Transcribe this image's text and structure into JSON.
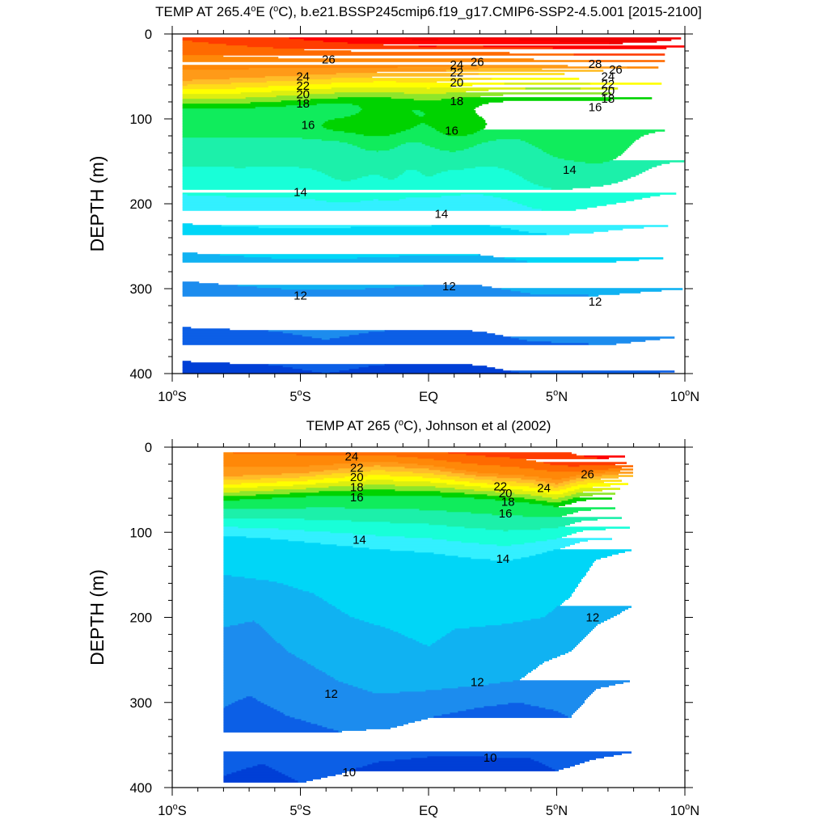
{
  "chart_data": [
    {
      "type": "heatmap",
      "title_parts": [
        "TEMP AT 265.4",
        "o",
        "E (",
        "o",
        "C), b.e21.BSSP245cmip6.f19_g17.CMIP6-SSP2-4.5.001 [2015-2100]"
      ],
      "ylabel": "DEPTH (m)",
      "xlabel": "",
      "x_range": [
        -10,
        10
      ],
      "y_range": [
        0,
        400
      ],
      "y_reversed": true,
      "data_x_range": [
        -9.6,
        10
      ],
      "data_y_range": [
        4,
        400
      ],
      "x_ticks": [
        {
          "v": -10,
          "l": "10",
          "s": "S"
        },
        {
          "v": -5,
          "l": "5",
          "s": "S"
        },
        {
          "v": 0,
          "l": "EQ",
          "s": ""
        },
        {
          "v": 5,
          "l": "5",
          "s": "N"
        },
        {
          "v": 10,
          "l": "10",
          "s": "N"
        }
      ],
      "y_ticks": [
        "0",
        "100",
        "200",
        "300",
        "400"
      ],
      "contour_labels": [
        {
          "x": -3.9,
          "y": 30,
          "t": "26"
        },
        {
          "x": -4.9,
          "y": 50,
          "t": "24"
        },
        {
          "x": -4.9,
          "y": 61,
          "t": "22"
        },
        {
          "x": -4.9,
          "y": 71,
          "t": "20"
        },
        {
          "x": -4.9,
          "y": 82,
          "t": "18"
        },
        {
          "x": 1.1,
          "y": 36,
          "t": "24"
        },
        {
          "x": 1.9,
          "y": 33,
          "t": "26"
        },
        {
          "x": 1.1,
          "y": 45,
          "t": "22"
        },
        {
          "x": 1.1,
          "y": 57,
          "t": "20"
        },
        {
          "x": 1.1,
          "y": 79,
          "t": "18"
        },
        {
          "x": 6.5,
          "y": 35,
          "t": "28"
        },
        {
          "x": 7.3,
          "y": 42,
          "t": "26"
        },
        {
          "x": 7.0,
          "y": 50,
          "t": "24"
        },
        {
          "x": 7.0,
          "y": 59,
          "t": "22"
        },
        {
          "x": 7.0,
          "y": 67,
          "t": "20"
        },
        {
          "x": 7.0,
          "y": 76,
          "t": "18"
        },
        {
          "x": 6.5,
          "y": 86,
          "t": "16"
        },
        {
          "x": -4.7,
          "y": 107,
          "t": "16"
        },
        {
          "x": 0.9,
          "y": 114,
          "t": "16"
        },
        {
          "x": 5.5,
          "y": 160,
          "t": "14"
        },
        {
          "x": -5.0,
          "y": 186,
          "t": "14"
        },
        {
          "x": 0.5,
          "y": 212,
          "t": "14"
        },
        {
          "x": -5.0,
          "y": 308,
          "t": "12"
        },
        {
          "x": 0.8,
          "y": 297,
          "t": "12"
        },
        {
          "x": 6.5,
          "y": 315,
          "t": "12"
        }
      ],
      "features": {
        "thermocline_depth_deg": [
          [
            -9.6,
            88
          ],
          [
            -7.5,
            88
          ],
          [
            -5,
            84
          ],
          [
            -2.8,
            80
          ],
          [
            -1.4,
            82
          ],
          [
            0,
            86
          ],
          [
            1.5,
            82
          ],
          [
            3,
            78
          ],
          [
            4.5,
            76
          ],
          [
            6,
            76
          ],
          [
            8,
            75
          ],
          [
            10,
            74
          ]
        ],
        "mixed_layer_depth_deg": [
          [
            -9.6,
            52
          ],
          [
            -5,
            45
          ],
          [
            -2,
            40
          ],
          [
            0,
            38
          ],
          [
            2,
            34
          ],
          [
            4,
            34
          ],
          [
            6,
            36
          ],
          [
            8,
            38
          ],
          [
            10,
            38
          ]
        ],
        "upper_doming": [
          [
            -3.5,
            110,
            1.3,
            12,
            0.9
          ],
          [
            -1.4,
            108,
            1.2,
            14,
            0.9
          ],
          [
            1.6,
            110,
            1.3,
            14,
            0.8
          ],
          [
            -2.1,
            122,
            1.0,
            30,
            0.7
          ],
          [
            1.0,
            122,
            1.0,
            32,
            0.7
          ],
          [
            -1.4,
            170,
            0.5,
            28,
            0.4
          ],
          [
            0,
            164,
            0.5,
            24,
            0.3
          ],
          [
            4.9,
            165,
            1.6,
            55,
            0.8
          ],
          [
            7.0,
            150,
            1.4,
            40,
            0.8
          ],
          [
            -3.2,
            175,
            1.2,
            25,
            0.5
          ]
        ],
        "deep_z12": [
          [
            -10,
            290
          ],
          [
            -6,
            300
          ],
          [
            -3.5,
            302
          ],
          [
            0,
            296
          ],
          [
            2,
            296
          ],
          [
            4,
            306
          ],
          [
            6.5,
            308
          ],
          [
            10,
            300
          ]
        ],
        "deep_z11": [
          [
            -10,
            345
          ],
          [
            -6,
            350
          ],
          [
            -4,
            360
          ],
          [
            -2,
            350
          ],
          [
            0,
            348
          ],
          [
            2,
            350
          ],
          [
            4,
            362
          ],
          [
            7,
            366
          ],
          [
            10,
            356
          ]
        ],
        "surface_warm": [
          [
            1.8,
            0,
            11,
            30,
            3.0
          ],
          [
            8.5,
            0,
            4,
            34,
            1.4
          ],
          [
            -0.2,
            0,
            0.6,
            10,
            0.8
          ]
        ]
      }
    },
    {
      "type": "heatmap",
      "title_parts": [
        "TEMP AT 265 (",
        "o",
        "C), Johnson et al (2002)"
      ],
      "ylabel": "DEPTH (m)",
      "xlabel": "",
      "x_range": [
        -10,
        10
      ],
      "y_range": [
        0,
        400
      ],
      "y_reversed": true,
      "data_x_range": [
        -8,
        8
      ],
      "data_y_range": [
        6,
        400
      ],
      "x_ticks": [
        {
          "v": -10,
          "l": "10",
          "s": "S"
        },
        {
          "v": -5,
          "l": "5",
          "s": "S"
        },
        {
          "v": 0,
          "l": "EQ",
          "s": ""
        },
        {
          "v": 5,
          "l": "5",
          "s": "N"
        },
        {
          "v": 10,
          "l": "10",
          "s": "N"
        }
      ],
      "y_ticks": [
        "0",
        "100",
        "200",
        "300",
        "400"
      ],
      "contour_labels": [
        {
          "x": -3.0,
          "y": 11,
          "t": "24"
        },
        {
          "x": -2.8,
          "y": 24,
          "t": "22"
        },
        {
          "x": -2.8,
          "y": 35,
          "t": "20"
        },
        {
          "x": -2.8,
          "y": 47,
          "t": "18"
        },
        {
          "x": -2.8,
          "y": 59,
          "t": "16"
        },
        {
          "x": 2.8,
          "y": 46,
          "t": "22"
        },
        {
          "x": 3.0,
          "y": 54,
          "t": "20"
        },
        {
          "x": 3.1,
          "y": 64,
          "t": "18"
        },
        {
          "x": 3.0,
          "y": 78,
          "t": "16"
        },
        {
          "x": 4.5,
          "y": 48,
          "t": "24"
        },
        {
          "x": 6.2,
          "y": 32,
          "t": "26"
        },
        {
          "x": -2.7,
          "y": 109,
          "t": "14"
        },
        {
          "x": 2.9,
          "y": 131,
          "t": "14"
        },
        {
          "x": 6.4,
          "y": 200,
          "t": "12"
        },
        {
          "x": -3.8,
          "y": 290,
          "t": "12"
        },
        {
          "x": 1.9,
          "y": 276,
          "t": "12"
        },
        {
          "x": -3.1,
          "y": 382,
          "t": "10"
        },
        {
          "x": 2.4,
          "y": 365,
          "t": "10"
        }
      ],
      "features": {
        "thermocline_depth_deg": [
          [
            -8,
            63
          ],
          [
            -6,
            60
          ],
          [
            -4,
            57
          ],
          [
            -2,
            56
          ],
          [
            0,
            57
          ],
          [
            2,
            60
          ],
          [
            3.5,
            64
          ],
          [
            5,
            70
          ],
          [
            6,
            62
          ],
          [
            8,
            58
          ]
        ],
        "mixed_layer_depth_deg": [
          [
            -8,
            32
          ],
          [
            -5,
            28
          ],
          [
            -2,
            16
          ],
          [
            0,
            20
          ],
          [
            2,
            30
          ],
          [
            4,
            34
          ],
          [
            5,
            40
          ],
          [
            6,
            30
          ],
          [
            8,
            20
          ]
        ],
        "z14": [
          [
            -8,
            104
          ],
          [
            -6,
            108
          ],
          [
            -4,
            114
          ],
          [
            -2,
            120
          ],
          [
            0,
            124
          ],
          [
            1.5,
            130
          ],
          [
            3,
            134
          ],
          [
            4,
            128
          ],
          [
            5,
            120
          ],
          [
            6,
            110
          ],
          [
            8,
            106
          ]
        ],
        "z13": [
          [
            -8,
            150
          ],
          [
            -6,
            158
          ],
          [
            -4.5,
            172
          ],
          [
            -3,
            200
          ],
          [
            -1.5,
            214
          ],
          [
            0,
            234
          ],
          [
            1,
            214
          ],
          [
            3,
            208
          ],
          [
            4.5,
            200
          ],
          [
            5.5,
            176
          ],
          [
            6.5,
            132
          ],
          [
            8,
            120
          ]
        ],
        "z12": [
          [
            -8,
            212
          ],
          [
            -6.8,
            204
          ],
          [
            -5.5,
            240
          ],
          [
            -3.5,
            275
          ],
          [
            -2,
            290
          ],
          [
            0,
            286
          ],
          [
            2,
            280
          ],
          [
            3.5,
            274
          ],
          [
            4.5,
            252
          ],
          [
            5.5,
            240
          ],
          [
            6.5,
            210
          ],
          [
            8,
            186
          ]
        ],
        "z11": [
          [
            -8,
            306
          ],
          [
            -7,
            292
          ],
          [
            -5.5,
            316
          ],
          [
            -3.5,
            334
          ],
          [
            -1.5,
            330
          ],
          [
            0,
            318
          ],
          [
            2,
            306
          ],
          [
            3.5,
            300
          ],
          [
            5,
            310
          ],
          [
            5.5,
            318
          ],
          [
            6.5,
            284
          ],
          [
            8,
            274
          ]
        ],
        "z10": [
          [
            -8,
            386
          ],
          [
            -6.5,
            372
          ],
          [
            -5,
            394
          ],
          [
            -3.5,
            384
          ],
          [
            -2,
            370
          ],
          [
            0,
            364
          ],
          [
            2,
            364
          ],
          [
            4,
            366
          ],
          [
            5,
            380
          ],
          [
            6.5,
            366
          ],
          [
            8,
            358
          ]
        ],
        "surface_warm": [
          [
            4.0,
            0,
            7,
            30,
            1.6
          ],
          [
            7.8,
            4,
            2,
            26,
            1.4
          ],
          [
            6.0,
            20,
            2,
            12,
            0.8
          ]
        ]
      }
    }
  ]
}
